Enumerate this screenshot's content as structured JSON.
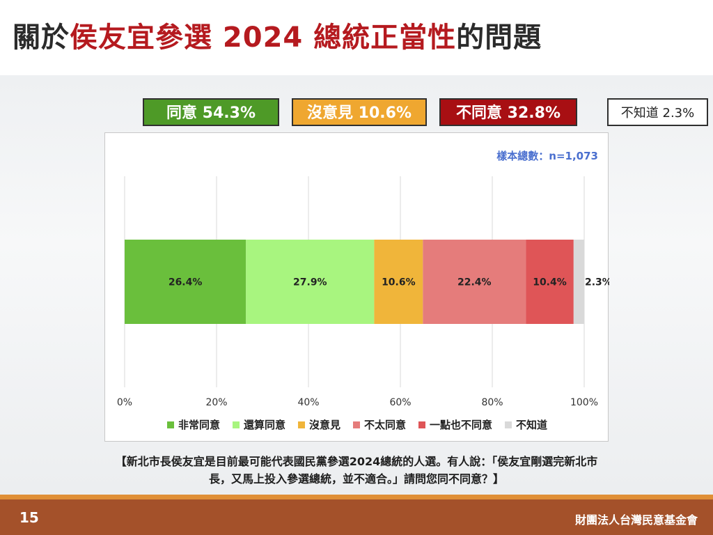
{
  "title": {
    "pre": "關於",
    "highlight1": "侯友宜參選",
    "mid": " 2024 ",
    "highlight2": "總統正當性",
    "post": "的問題"
  },
  "summary": {
    "agree": "同意 54.3%",
    "neutral": "沒意見 10.6%",
    "disagree": "不同意 32.8%",
    "unknown": "不知道 2.3%"
  },
  "sample_size": "樣本總數：n=1,073",
  "question": "【新北市長侯友宜是目前最可能代表國民黨參選2024總統的人選。有人說：「侯友宜剛選完新北市長，又馬上投入參選總統，並不適合。」請問您同不同意？】",
  "footer": {
    "page": "15",
    "org": "財團法人台灣民意基金會"
  },
  "colors": {
    "strongly_agree": "#6abf3c",
    "somewhat_agree": "#a8f57f",
    "no_opinion": "#f0b53a",
    "somewhat_disagree": "#e57c7b",
    "strongly_disagree": "#df5557",
    "dont_know": "#d9d9d9"
  },
  "chart_data": {
    "type": "bar",
    "orientation": "horizontal-stacked",
    "xlim": [
      0,
      100
    ],
    "ticks": [
      "0%",
      "20%",
      "40%",
      "60%",
      "80%",
      "100%"
    ],
    "tick_values": [
      0,
      20,
      40,
      60,
      80,
      100
    ],
    "grid": true,
    "legend_position": "bottom",
    "series": [
      {
        "name": "非常同意",
        "value": 26.4,
        "label": "26.4%",
        "color": "#6abf3c"
      },
      {
        "name": "還算同意",
        "value": 27.9,
        "label": "27.9%",
        "color": "#a8f57f"
      },
      {
        "name": "沒意見",
        "value": 10.6,
        "label": "10.6%",
        "color": "#f0b53a"
      },
      {
        "name": "不太同意",
        "value": 22.4,
        "label": "22.4%",
        "color": "#e57c7b"
      },
      {
        "name": "一點也不同意",
        "value": 10.4,
        "label": "10.4%",
        "color": "#df5557"
      },
      {
        "name": "不知道",
        "value": 2.3,
        "label": "2.3%",
        "color": "#d9d9d9"
      }
    ]
  }
}
